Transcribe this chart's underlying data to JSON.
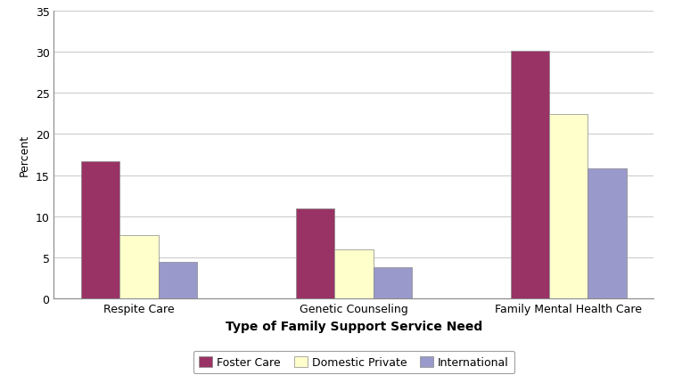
{
  "categories": [
    "Respite Care",
    "Genetic Counseling",
    "Family Mental Health Care"
  ],
  "series": [
    {
      "label": "Foster Care",
      "values": [
        16.7,
        11.0,
        30.1
      ],
      "color": "#993366"
    },
    {
      "label": "Domestic Private",
      "values": [
        7.7,
        6.0,
        22.4
      ],
      "color": "#FFFFCC"
    },
    {
      "label": "International",
      "values": [
        4.5,
        3.8,
        15.8
      ],
      "color": "#9999CC"
    }
  ],
  "ylabel": "Percent",
  "xlabel": "Type of Family Support Service Need",
  "ylim": [
    0,
    35
  ],
  "yticks": [
    0,
    5,
    10,
    15,
    20,
    25,
    30,
    35
  ],
  "bar_width": 0.18,
  "background_color": "#FFFFFF",
  "grid_color": "#CCCCCC",
  "legend_edgecolor": "#888888",
  "xlabel_fontsize": 10,
  "ylabel_fontsize": 9,
  "tick_fontsize": 9,
  "legend_fontsize": 9
}
